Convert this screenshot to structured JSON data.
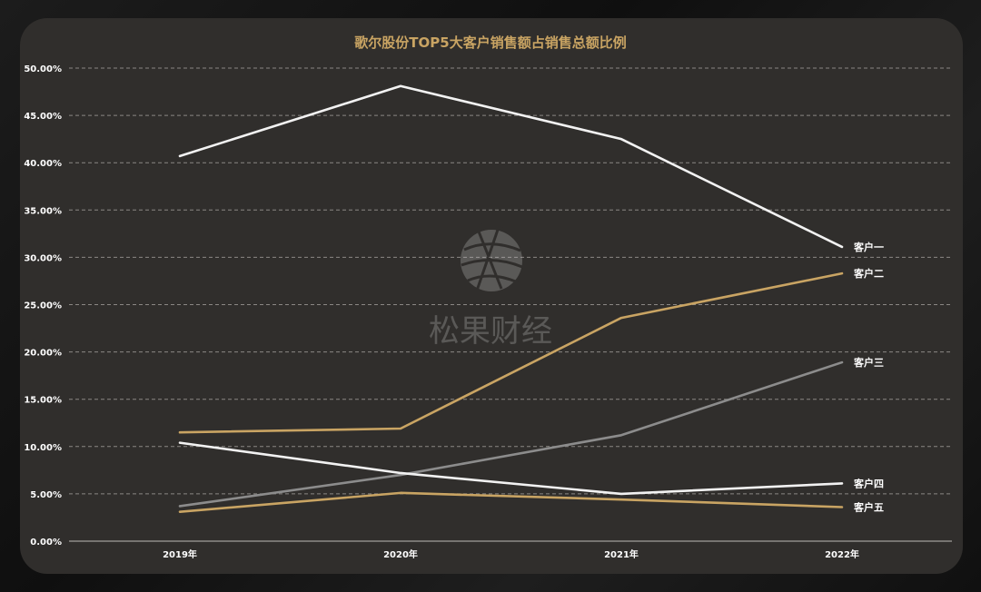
{
  "chart_data": {
    "type": "line",
    "title": "歌尔股份TOP5大客户销售额占销售总额比例",
    "categories": [
      "2019年",
      "2020年",
      "2021年",
      "2022年"
    ],
    "ylim": [
      0,
      50
    ],
    "yticks": [
      "0.00%",
      "5.00%",
      "10.00%",
      "15.00%",
      "20.00%",
      "25.00%",
      "30.00%",
      "35.00%",
      "40.00%",
      "45.00%",
      "50.00%"
    ],
    "grid": true,
    "series": [
      {
        "name": "客户一",
        "values": [
          40.7,
          48.1,
          42.5,
          31.1
        ],
        "color": "#f2f2f2"
      },
      {
        "name": "客户二",
        "values": [
          11.5,
          11.9,
          23.6,
          28.3
        ],
        "color": "#c9a463"
      },
      {
        "name": "客户三",
        "values": [
          3.7,
          7.0,
          11.2,
          18.9
        ],
        "color": "#8c8c8c"
      },
      {
        "name": "客户四",
        "values": [
          10.4,
          7.2,
          5.0,
          6.1
        ],
        "color": "#f2f2f2"
      },
      {
        "name": "客户五",
        "values": [
          3.1,
          5.1,
          4.4,
          3.6
        ],
        "color": "#c9a463"
      }
    ]
  },
  "colors": {
    "title": "#c9a463",
    "axis_text": "#ffffff",
    "grid": "#8a8784",
    "panel": "#302e2c"
  },
  "watermark": {
    "text": "松果财经"
  }
}
